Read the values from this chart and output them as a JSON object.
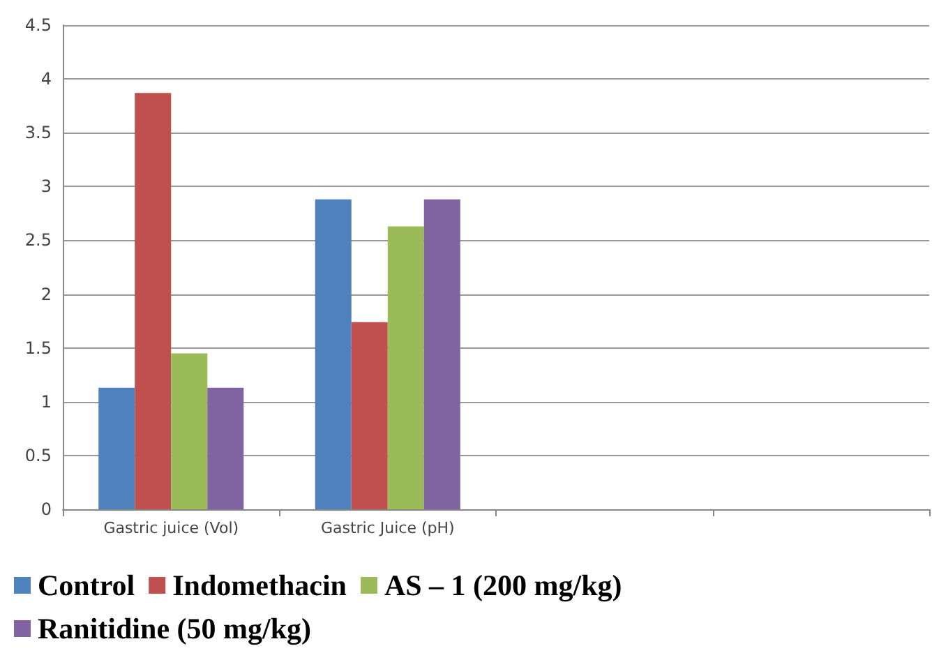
{
  "chart_data": {
    "type": "bar",
    "categories": [
      "Gastric juice (Vol)",
      "Gastric Juice (pH)",
      null,
      null
    ],
    "series": [
      {
        "name": "Control",
        "color": "#4f81bd",
        "values": [
          1.13,
          2.88,
          null,
          null
        ]
      },
      {
        "name": "Indomethacin",
        "color": "#c0504d",
        "values": [
          3.87,
          1.74,
          null,
          null
        ]
      },
      {
        "name": "AS – 1 (200 mg/kg)",
        "color": "#9bbb59",
        "values": [
          1.45,
          2.63,
          null,
          null
        ]
      },
      {
        "name": "Ranitidine (50 mg/kg)",
        "color": "#8064a2",
        "values": [
          1.13,
          2.88,
          null,
          null
        ]
      }
    ],
    "ylim": [
      0,
      4.5
    ],
    "yticks": [
      0,
      0.5,
      1,
      1.5,
      2,
      2.5,
      3,
      3.5,
      4,
      4.5
    ],
    "grid": "y",
    "legend": "bottom"
  }
}
